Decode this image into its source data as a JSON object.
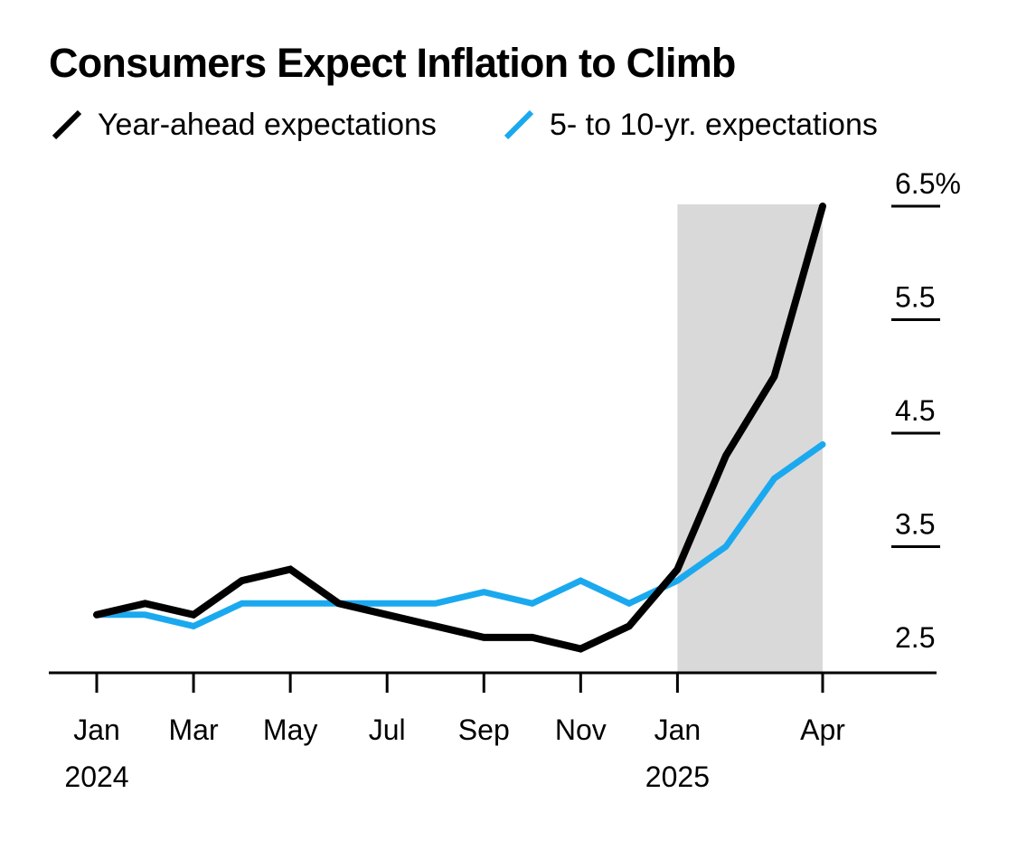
{
  "chart_data": {
    "type": "line",
    "title": "Consumers Expect Inflation to Climb",
    "x": [
      "2024-01",
      "2024-02",
      "2024-03",
      "2024-04",
      "2024-05",
      "2024-06",
      "2024-07",
      "2024-08",
      "2024-09",
      "2024-10",
      "2024-11",
      "2024-12",
      "2025-01",
      "2025-02",
      "2025-03",
      "2025-04"
    ],
    "series": [
      {
        "name": "Year-ahead expectations",
        "color": "#000000",
        "values": [
          2.9,
          3.0,
          2.9,
          3.2,
          3.3,
          3.0,
          2.9,
          2.8,
          2.7,
          2.7,
          2.6,
          2.8,
          3.3,
          4.3,
          5.0,
          6.5
        ]
      },
      {
        "name": "5- to 10-yr. expectations",
        "color": "#1aa9ef",
        "values": [
          2.9,
          2.9,
          2.8,
          3.0,
          3.0,
          3.0,
          3.0,
          3.0,
          3.1,
          3.0,
          3.2,
          3.0,
          3.2,
          3.5,
          4.1,
          4.4
        ]
      }
    ],
    "x_ticks": [
      {
        "label": "Jan",
        "sublabel": "2024",
        "x": "2024-01"
      },
      {
        "label": "Mar",
        "sublabel": "",
        "x": "2024-03"
      },
      {
        "label": "May",
        "sublabel": "",
        "x": "2024-05"
      },
      {
        "label": "Jul",
        "sublabel": "",
        "x": "2024-07"
      },
      {
        "label": "Sep",
        "sublabel": "",
        "x": "2024-09"
      },
      {
        "label": "Nov",
        "sublabel": "",
        "x": "2024-11"
      },
      {
        "label": "Jan",
        "sublabel": "2025",
        "x": "2025-01"
      },
      {
        "label": "Apr",
        "sublabel": "",
        "x": "2025-04"
      }
    ],
    "y_ticks": [
      {
        "value": 2.5,
        "label": "2.5"
      },
      {
        "value": 3.5,
        "label": "3.5"
      },
      {
        "value": 4.5,
        "label": "4.5"
      },
      {
        "value": 5.5,
        "label": "5.5"
      },
      {
        "value": 6.5,
        "label": "6.5%"
      }
    ],
    "shaded_range": {
      "start": "2025-01",
      "end": "2025-04",
      "color": "#d9d9d9"
    },
    "ylim": [
      2.5,
      6.5
    ],
    "grid": false,
    "legend_position": "top-left",
    "axis_color": "#000000"
  }
}
